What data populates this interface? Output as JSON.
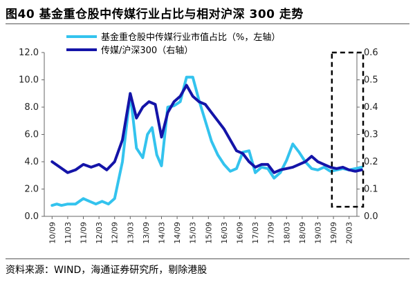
{
  "title": "图40 基金重仓股中传媒行业占比与相对沪深 300 走势",
  "source": "资料来源：WIND，海通证券研究所，剔除港股",
  "colors": {
    "series1": "#33c3ee",
    "series2": "#1414a8",
    "box": "#000000"
  },
  "chart_data": {
    "type": "line",
    "x": [
      "10/09",
      "11/03",
      "11/09",
      "12/03",
      "12/09",
      "13/03",
      "13/09",
      "14/03",
      "14/09",
      "15/03",
      "15/09",
      "16/03",
      "16/09",
      "17/03",
      "17/09",
      "18/03",
      "18/09",
      "19/03",
      "19/09",
      "20/03"
    ],
    "y_left": {
      "lim": [
        0,
        12
      ],
      "ticks": [
        "0.0",
        "2.0",
        "4.0",
        "6.0",
        "8.0",
        "10.0",
        "12.0"
      ]
    },
    "y_right": {
      "lim": [
        0,
        0.6
      ],
      "ticks": [
        "0.0",
        "0.1",
        "0.2",
        "0.3",
        "0.4",
        "0.5",
        "0.6"
      ]
    },
    "series": [
      {
        "name": "基金重仓股中传媒行业市值占比（%，左轴）",
        "axis": "left",
        "x": [
          0,
          0.3,
          0.6,
          1,
          1.5,
          2,
          2.4,
          2.8,
          3.2,
          3.6,
          4,
          4.5,
          5,
          5.4,
          5.8,
          6.1,
          6.4,
          6.7,
          7,
          7.4,
          7.8,
          8.2,
          8.6,
          9,
          9.4,
          9.8,
          10.2,
          10.6,
          11,
          11.4,
          11.8,
          12.2,
          12.6,
          13,
          13.4,
          13.8,
          14.2,
          14.6,
          15,
          15.4,
          15.8,
          16.2,
          16.6,
          17,
          17.4,
          17.8,
          18.2,
          18.6,
          19,
          19.4,
          19.8
        ],
        "y": [
          0.8,
          0.9,
          0.8,
          0.9,
          0.9,
          1.3,
          1.1,
          0.9,
          1.1,
          0.9,
          1.3,
          4.0,
          9.0,
          5.0,
          4.3,
          6.0,
          6.5,
          4.5,
          3.7,
          8.0,
          8.1,
          8.4,
          10.2,
          10.2,
          8.5,
          7.0,
          5.5,
          4.5,
          3.8,
          3.3,
          3.5,
          4.7,
          4.8,
          3.2,
          3.6,
          3.5,
          2.8,
          3.2,
          4.1,
          5.3,
          4.7,
          4.0,
          3.5,
          3.4,
          3.6,
          3.3,
          3.4,
          3.5,
          3.4,
          3.5,
          3.6
        ]
      },
      {
        "name": "传媒/沪深300（右轴）",
        "axis": "right",
        "x": [
          0,
          0.5,
          1,
          1.5,
          2,
          2.5,
          3,
          3.5,
          4,
          4.5,
          5,
          5.4,
          5.8,
          6.2,
          6.6,
          7,
          7.4,
          7.8,
          8.2,
          8.6,
          9,
          9.4,
          9.8,
          10.2,
          10.6,
          11,
          11.4,
          11.8,
          12.2,
          12.6,
          13,
          13.4,
          13.8,
          14.2,
          14.6,
          15,
          15.4,
          15.8,
          16.2,
          16.6,
          17,
          17.4,
          17.8,
          18.2,
          18.6,
          19,
          19.4,
          19.8
        ],
        "y": [
          0.2,
          0.18,
          0.16,
          0.17,
          0.19,
          0.18,
          0.19,
          0.17,
          0.2,
          0.28,
          0.45,
          0.36,
          0.4,
          0.42,
          0.41,
          0.29,
          0.38,
          0.42,
          0.44,
          0.48,
          0.44,
          0.42,
          0.41,
          0.38,
          0.35,
          0.32,
          0.28,
          0.24,
          0.23,
          0.2,
          0.18,
          0.19,
          0.19,
          0.16,
          0.17,
          0.175,
          0.18,
          0.19,
          0.2,
          0.22,
          0.2,
          0.19,
          0.18,
          0.175,
          0.18,
          0.17,
          0.165,
          0.17
        ]
      }
    ],
    "legend_position": "top",
    "grid": false,
    "annotations": [
      {
        "type": "dashed-box",
        "x_range": [
          17.9,
          19.9
        ],
        "y_right_range": [
          0.035,
          0.6
        ]
      }
    ]
  }
}
